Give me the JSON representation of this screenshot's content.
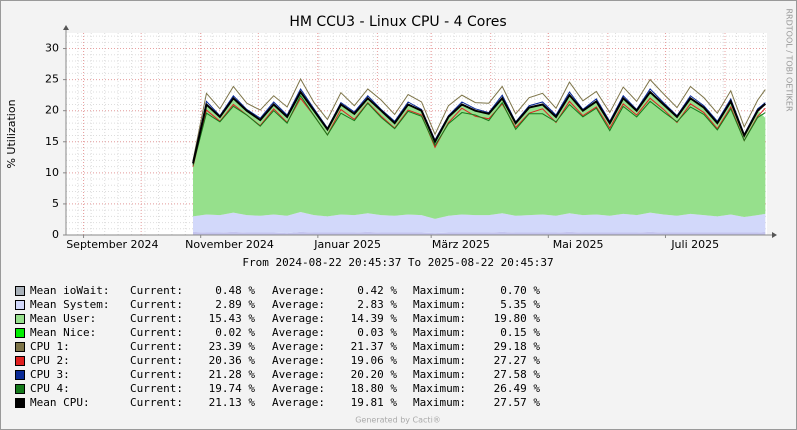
{
  "chart_data": {
    "type": "line",
    "title": "HM CCU3 - Linux CPU - 4 Cores",
    "y_label": "% Utilization",
    "side_text": "RRDTOOL / TOBI OETIKER",
    "footer": "Generated by Cacti®",
    "range_words": [
      "From",
      "To"
    ],
    "legend_labels": [
      "Current:",
      "Average:",
      "Maximum:"
    ],
    "xlim": [
      "2024-08-22 20:45:37",
      "2025-08-22 20:45:37"
    ],
    "xticks": [
      {
        "value": "2024-09",
        "label": "September 2024"
      },
      {
        "value": "2024-11",
        "label": "November 2024"
      },
      {
        "value": "2025-01",
        "label": "Januar 2025"
      },
      {
        "value": "2025-03",
        "label": "März 2025"
      },
      {
        "value": "2025-05",
        "label": "Mai 2025"
      },
      {
        "value": "2025-07",
        "label": "Juli 2025"
      }
    ],
    "ylim": [
      0,
      32.5
    ],
    "yticks": [
      0,
      5,
      10,
      15,
      20,
      25,
      30
    ],
    "grid": true,
    "x": [
      "2024-10-28",
      "2024-11-04",
      "2024-11-11",
      "2024-11-18",
      "2024-11-25",
      "2024-12-02",
      "2024-12-09",
      "2024-12-16",
      "2024-12-23",
      "2024-12-30",
      "2025-01-06",
      "2025-01-13",
      "2025-01-20",
      "2025-01-27",
      "2025-02-03",
      "2025-02-10",
      "2025-02-17",
      "2025-02-24",
      "2025-03-03",
      "2025-03-10",
      "2025-03-17",
      "2025-03-24",
      "2025-03-31",
      "2025-04-07",
      "2025-04-14",
      "2025-04-21",
      "2025-04-28",
      "2025-05-05",
      "2025-05-12",
      "2025-05-19",
      "2025-05-26",
      "2025-06-02",
      "2025-06-09",
      "2025-06-16",
      "2025-06-23",
      "2025-06-30",
      "2025-07-07",
      "2025-07-14",
      "2025-07-21",
      "2025-07-28",
      "2025-08-04",
      "2025-08-11",
      "2025-08-18",
      "2025-08-22"
    ],
    "series": [
      {
        "name": "Mean ioWait",
        "kind": "area",
        "color": "#c4c4ee",
        "swatch": "#a8b0b8",
        "current": "0.48 %",
        "average": "0.42 %",
        "maximum": "0.70 %",
        "values": [
          0.5,
          0.4,
          0.4,
          0.5,
          0.4,
          0.4,
          0.4,
          0.3,
          0.5,
          0.4,
          0.4,
          0.4,
          0.4,
          0.5,
          0.4,
          0.4,
          0.4,
          0.4,
          0.3,
          0.4,
          0.4,
          0.4,
          0.4,
          0.5,
          0.4,
          0.4,
          0.4,
          0.4,
          0.5,
          0.4,
          0.4,
          0.4,
          0.4,
          0.4,
          0.5,
          0.4,
          0.4,
          0.4,
          0.4,
          0.4,
          0.4,
          0.4,
          0.4,
          0.5
        ]
      },
      {
        "name": "Mean System",
        "kind": "area",
        "color": "#d2d8fa",
        "current": "2.89 %",
        "average": "2.83 %",
        "maximum": "5.35 %",
        "values": [
          2.5,
          2.9,
          2.8,
          3.1,
          2.8,
          2.7,
          2.9,
          2.8,
          3.2,
          2.8,
          2.6,
          2.9,
          2.8,
          3.0,
          2.8,
          2.7,
          2.9,
          2.8,
          2.3,
          2.7,
          2.9,
          2.8,
          2.8,
          3.0,
          2.7,
          2.8,
          2.9,
          2.7,
          3.0,
          2.8,
          2.9,
          2.7,
          3.0,
          2.8,
          3.1,
          2.9,
          2.7,
          3.0,
          2.8,
          2.6,
          2.9,
          2.5,
          2.8,
          2.9
        ]
      },
      {
        "name": "Mean User",
        "kind": "area",
        "color": "#96e08c",
        "current": "15.43 %",
        "average": "14.39 %",
        "maximum": "19.80 %",
        "values": [
          8.5,
          17.7,
          15.8,
          18.4,
          16.8,
          15.4,
          17.7,
          15.9,
          19.3,
          16.8,
          14.0,
          17.7,
          16.3,
          18.5,
          16.8,
          14.9,
          17.7,
          16.8,
          12.4,
          15.9,
          17.7,
          16.8,
          16.3,
          18.5,
          14.9,
          17.3,
          17.7,
          15.9,
          19.0,
          16.8,
          18.2,
          14.9,
          18.6,
          16.8,
          19.4,
          17.7,
          15.9,
          18.6,
          17.3,
          15.0,
          18.2,
          13.1,
          16.8,
          15.4
        ]
      },
      {
        "name": "Mean Nice",
        "kind": "area",
        "color": "#00ee00",
        "current": "0.02 %",
        "average": "0.03 %",
        "maximum": "0.15 %",
        "values": [
          0.03,
          0.03,
          0.03,
          0.03,
          0.03,
          0.03,
          0.03,
          0.03,
          0.03,
          0.03,
          0.03,
          0.03,
          0.03,
          0.03,
          0.03,
          0.03,
          0.03,
          0.03,
          0.03,
          0.03,
          0.03,
          0.03,
          0.03,
          0.03,
          0.03,
          0.03,
          0.03,
          0.03,
          0.03,
          0.03,
          0.03,
          0.03,
          0.03,
          0.03,
          0.03,
          0.03,
          0.03,
          0.03,
          0.03,
          0.03,
          0.03,
          0.03,
          0.03,
          0.03
        ]
      },
      {
        "name": "CPU 1",
        "kind": "line",
        "color": "#7d7448",
        "current": "23.39 %",
        "average": "21.37 %",
        "maximum": "29.18 %",
        "values": [
          12.0,
          22.8,
          20.3,
          23.9,
          21.2,
          20.1,
          22.4,
          20.6,
          25.1,
          21.3,
          18.6,
          22.9,
          20.8,
          23.5,
          21.7,
          19.4,
          22.6,
          21.4,
          16.2,
          20.8,
          22.5,
          21.3,
          21.2,
          23.9,
          19.5,
          22.1,
          22.8,
          20.4,
          24.6,
          21.6,
          23.1,
          19.7,
          23.8,
          21.5,
          25.0,
          22.7,
          20.5,
          23.9,
          22.1,
          19.6,
          23.2,
          17.4,
          21.7,
          23.4
        ]
      },
      {
        "name": "CPU 2",
        "kind": "line",
        "color": "#e02020",
        "current": "20.36 %",
        "average": "19.06 %",
        "maximum": "27.27 %",
        "values": [
          11.0,
          20.1,
          18.3,
          21.0,
          19.3,
          17.6,
          20.3,
          18.1,
          22.0,
          19.2,
          16.1,
          20.2,
          18.6,
          21.3,
          19.1,
          17.2,
          20.1,
          19.3,
          14.1,
          18.1,
          20.4,
          19.1,
          18.7,
          21.1,
          17.3,
          19.6,
          20.3,
          18.1,
          21.5,
          19.2,
          20.6,
          17.2,
          21.1,
          19.3,
          22.0,
          20.2,
          18.1,
          21.1,
          19.7,
          17.1,
          20.6,
          15.2,
          19.1,
          20.4
        ]
      },
      {
        "name": "CPU 3",
        "kind": "line",
        "color": "#0a2a96",
        "current": "21.28 %",
        "average": "20.20 %",
        "maximum": "27.58 %",
        "values": [
          11.8,
          21.5,
          19.2,
          22.4,
          20.2,
          18.8,
          21.4,
          19.3,
          23.5,
          20.3,
          17.2,
          21.3,
          19.8,
          22.4,
          20.2,
          18.3,
          21.4,
          20.2,
          15.3,
          19.2,
          21.4,
          20.3,
          19.7,
          22.5,
          18.2,
          20.8,
          21.4,
          19.3,
          23.0,
          20.2,
          21.9,
          18.3,
          22.4,
          20.2,
          23.5,
          21.3,
          19.2,
          22.4,
          20.8,
          18.3,
          21.9,
          16.2,
          20.3,
          21.3
        ]
      },
      {
        "name": "CPU 4",
        "kind": "line",
        "color": "#157a1b",
        "current": "19.74 %",
        "average": "18.80 %",
        "maximum": "26.49 %",
        "values": [
          11.2,
          19.6,
          18.2,
          20.7,
          19.3,
          17.5,
          20.0,
          18.0,
          22.4,
          19.2,
          16.1,
          19.6,
          18.4,
          21.2,
          18.9,
          17.1,
          19.9,
          19.1,
          14.4,
          17.9,
          19.7,
          19.3,
          18.4,
          21.3,
          17.0,
          19.5,
          19.5,
          18.2,
          21.0,
          19.0,
          20.4,
          16.8,
          20.7,
          19.0,
          21.5,
          19.8,
          18.2,
          20.6,
          19.4,
          16.9,
          20.3,
          15.2,
          18.9,
          19.7
        ]
      },
      {
        "name": "Mean CPU",
        "kind": "line",
        "color": "#000000",
        "current": "21.13 %",
        "average": "19.81 %",
        "maximum": "27.57 %",
        "values": [
          11.5,
          21.0,
          19.0,
          22.0,
          20.0,
          18.5,
          21.0,
          19.0,
          23.0,
          20.0,
          17.0,
          21.0,
          19.5,
          22.0,
          20.0,
          18.0,
          21.0,
          20.0,
          15.0,
          19.0,
          21.0,
          20.0,
          19.5,
          22.0,
          18.0,
          20.5,
          21.0,
          19.0,
          22.5,
          20.0,
          21.5,
          18.0,
          22.0,
          20.0,
          23.0,
          21.0,
          19.0,
          22.0,
          20.5,
          18.0,
          21.5,
          16.0,
          20.0,
          21.1
        ]
      }
    ]
  }
}
